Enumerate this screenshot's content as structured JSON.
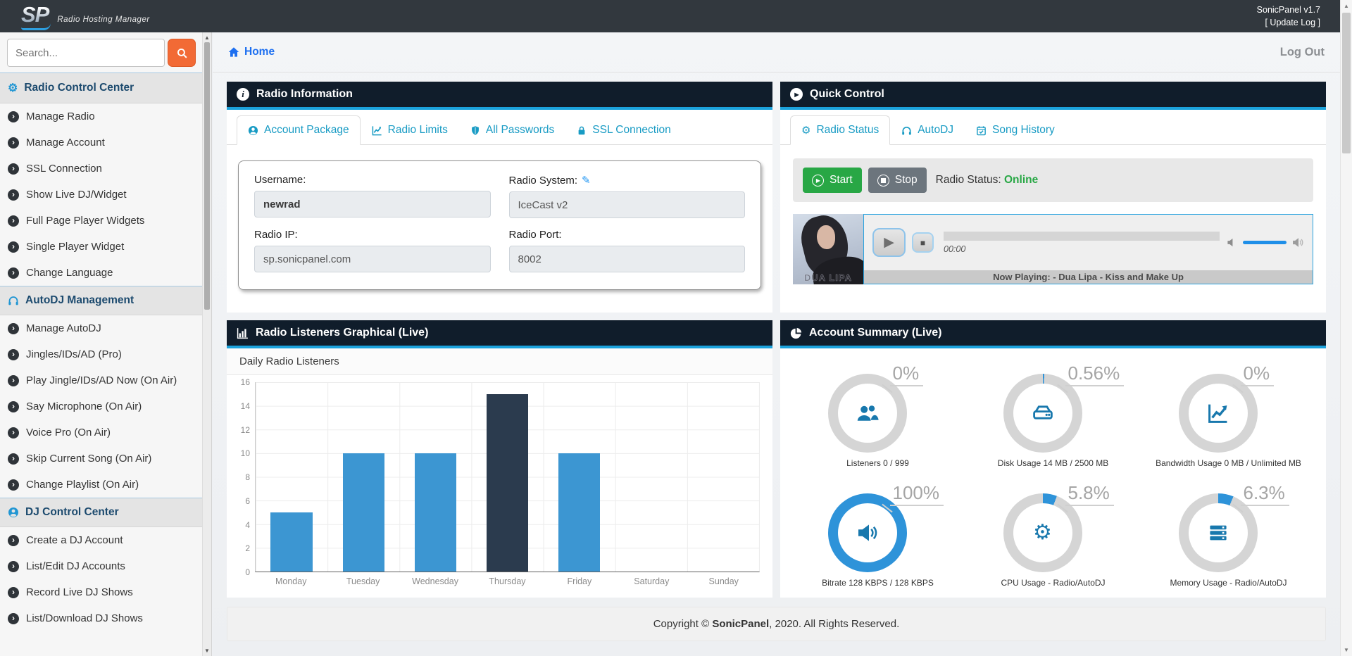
{
  "topbar": {
    "logo_text": "SP",
    "logo_subtitle": "Radio Hosting Manager",
    "version": "SonicPanel v1.7",
    "update_log": "[ Update Log ]"
  },
  "sidebar": {
    "search_placeholder": "Search...",
    "sections": [
      {
        "title": "Radio Control Center",
        "items": [
          "Manage Radio",
          "Manage Account",
          "SSL Connection",
          "Show Live DJ/Widget",
          "Full Page Player Widgets",
          "Single Player Widget",
          "Change Language"
        ]
      },
      {
        "title": "AutoDJ Management",
        "items": [
          "Manage AutoDJ",
          "Jingles/IDs/AD (Pro)",
          "Play Jingle/IDs/AD Now (On Air)",
          "Say Microphone (On Air)",
          "Voice Pro (On Air)",
          "Skip Current Song (On Air)",
          "Change Playlist (On Air)"
        ]
      },
      {
        "title": "DJ Control Center",
        "items": [
          "Create a DJ Account",
          "List/Edit DJ Accounts",
          "Record Live DJ Shows",
          "List/Download DJ Shows"
        ]
      }
    ]
  },
  "header": {
    "breadcrumb": "Home",
    "logout": "Log Out"
  },
  "radio_information": {
    "title": "Radio Information",
    "tabs": [
      "Account Package",
      "Radio Limits",
      "All Passwords",
      "SSL Connection"
    ],
    "fields": {
      "username_label": "Username:",
      "username_value": "newrad",
      "radio_system_label": "Radio System:",
      "radio_system_value": "IceCast v2",
      "radio_ip_label": "Radio IP:",
      "radio_ip_value": "sp.sonicpanel.com",
      "radio_port_label": "Radio Port:",
      "radio_port_value": "8002"
    }
  },
  "quick_control": {
    "title": "Quick Control",
    "tabs": [
      "Radio Status",
      "AutoDJ",
      "Song History"
    ],
    "start_label": "Start",
    "stop_label": "Stop",
    "status_label": "Radio Status:",
    "status_value": "Online",
    "player": {
      "time": "00:00",
      "now_playing": "Now Playing: - Dua Lipa - Kiss and Make Up",
      "album_art_text": "DUA LIPA"
    }
  },
  "chart_panel": {
    "title": "Radio Listeners Graphical (Live)"
  },
  "chart_data": {
    "type": "bar",
    "title": "Daily Radio Listeners",
    "categories": [
      "Monday",
      "Tuesday",
      "Wednesday",
      "Thursday",
      "Friday",
      "Saturday",
      "Sunday"
    ],
    "values": [
      5,
      10,
      10,
      15,
      10,
      0,
      0
    ],
    "yticks": [
      16,
      14,
      12,
      10,
      8,
      6,
      4,
      2,
      0
    ],
    "ylim": [
      0,
      16
    ],
    "grid": true,
    "legend": false,
    "highlight_index": 3,
    "bar_color": "#3c96d2",
    "highlight_color": "#2b3b4e",
    "xlabel": "",
    "ylabel": ""
  },
  "account_summary": {
    "title": "Account Summary (Live)",
    "ring_color": "#2e93d9",
    "track_color": "#d5d5d5",
    "gauges": [
      {
        "percent": 0,
        "percent_label": "0%",
        "label": "Listeners 0 / 999",
        "icon": "users-icon"
      },
      {
        "percent": 0.56,
        "percent_label": "0.56%",
        "label": "Disk Usage 14 MB / 2500 MB",
        "icon": "hdd-icon"
      },
      {
        "percent": 0,
        "percent_label": "0%",
        "label": "Bandwidth Usage 0 MB / Unlimited MB",
        "icon": "chart-line-icon"
      },
      {
        "percent": 100,
        "percent_label": "100%",
        "label": "Bitrate 128 KBPS / 128 KBPS",
        "icon": "volume-icon"
      },
      {
        "percent": 5.8,
        "percent_label": "5.8%",
        "label": "CPU Usage - Radio/AutoDJ",
        "icon": "gear-icon"
      },
      {
        "percent": 6.3,
        "percent_label": "6.3%",
        "label": "Memory Usage - Radio/AutoDJ",
        "icon": "memory-icon"
      }
    ]
  },
  "footer": {
    "copyright_prefix": "Copyright © ",
    "brand": "SonicPanel",
    "copyright_suffix": ", 2020. All Rights Reserved."
  }
}
